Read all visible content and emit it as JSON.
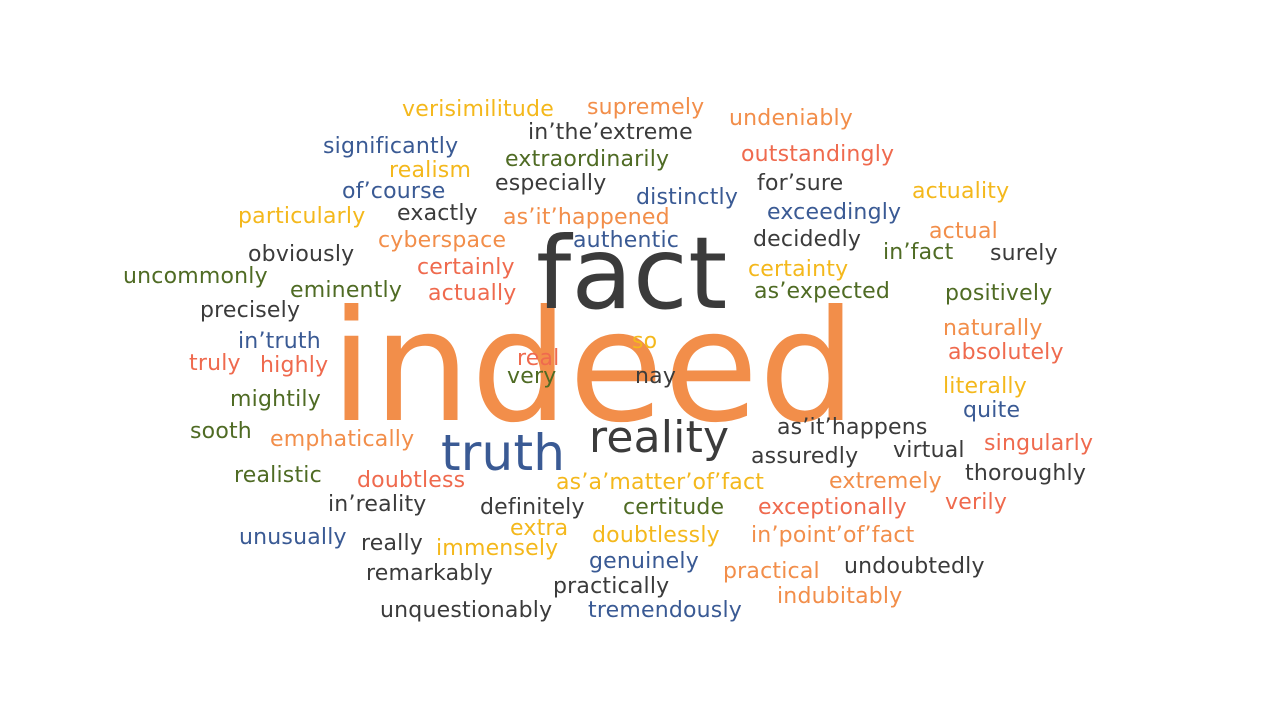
{
  "colors": {
    "orange": "#f28e4a",
    "yellow": "#f4b81c",
    "red": "#ef6a4e",
    "blue": "#3a5a94",
    "green": "#4f6b24",
    "dark": "#3b3b3b"
  },
  "words": [
    {
      "text": "indeed",
      "color": "orange"
    },
    {
      "text": "fact",
      "color": "dark"
    },
    {
      "text": "truth",
      "color": "blue"
    },
    {
      "text": "reality",
      "color": "dark"
    },
    {
      "text": "verisimilitude",
      "color": "yellow"
    },
    {
      "text": "supremely",
      "color": "orange"
    },
    {
      "text": "undeniably",
      "color": "orange"
    },
    {
      "text": "in’the’extreme",
      "color": "dark"
    },
    {
      "text": "significantly",
      "color": "blue"
    },
    {
      "text": "extraordinarily",
      "color": "green"
    },
    {
      "text": "outstandingly",
      "color": "red"
    },
    {
      "text": "realism",
      "color": "yellow"
    },
    {
      "text": "of’course",
      "color": "blue"
    },
    {
      "text": "especially",
      "color": "dark"
    },
    {
      "text": "distinctly",
      "color": "blue"
    },
    {
      "text": "for’sure",
      "color": "dark"
    },
    {
      "text": "actuality",
      "color": "yellow"
    },
    {
      "text": "particularly",
      "color": "yellow"
    },
    {
      "text": "exactly",
      "color": "dark"
    },
    {
      "text": "as’it’happened",
      "color": "orange"
    },
    {
      "text": "exceedingly",
      "color": "blue"
    },
    {
      "text": "actual",
      "color": "orange"
    },
    {
      "text": "cyberspace",
      "color": "orange"
    },
    {
      "text": "authentic",
      "color": "blue"
    },
    {
      "text": "decidedly",
      "color": "dark"
    },
    {
      "text": "obviously",
      "color": "dark"
    },
    {
      "text": "in’fact",
      "color": "green"
    },
    {
      "text": "surely",
      "color": "dark"
    },
    {
      "text": "uncommonly",
      "color": "green"
    },
    {
      "text": "certainly",
      "color": "red"
    },
    {
      "text": "certainty",
      "color": "yellow"
    },
    {
      "text": "eminently",
      "color": "green"
    },
    {
      "text": "actually",
      "color": "red"
    },
    {
      "text": "as’expected",
      "color": "green"
    },
    {
      "text": "positively",
      "color": "green"
    },
    {
      "text": "precisely",
      "color": "dark"
    },
    {
      "text": "naturally",
      "color": "orange"
    },
    {
      "text": "in’truth",
      "color": "blue"
    },
    {
      "text": "so",
      "color": "yellow"
    },
    {
      "text": "absolutely",
      "color": "red"
    },
    {
      "text": "truly",
      "color": "red"
    },
    {
      "text": "highly",
      "color": "red"
    },
    {
      "text": "real",
      "color": "red"
    },
    {
      "text": "very",
      "color": "green"
    },
    {
      "text": "nay",
      "color": "dark"
    },
    {
      "text": "literally",
      "color": "yellow"
    },
    {
      "text": "mightily",
      "color": "green"
    },
    {
      "text": "quite",
      "color": "blue"
    },
    {
      "text": "sooth",
      "color": "green"
    },
    {
      "text": "emphatically",
      "color": "orange"
    },
    {
      "text": "as’it’happens",
      "color": "dark"
    },
    {
      "text": "singularly",
      "color": "red"
    },
    {
      "text": "virtual",
      "color": "dark"
    },
    {
      "text": "assuredly",
      "color": "dark"
    },
    {
      "text": "realistic",
      "color": "green"
    },
    {
      "text": "doubtless",
      "color": "red"
    },
    {
      "text": "as’a’matter’of’fact",
      "color": "yellow"
    },
    {
      "text": "extremely",
      "color": "orange"
    },
    {
      "text": "thoroughly",
      "color": "dark"
    },
    {
      "text": "in’reality",
      "color": "dark"
    },
    {
      "text": "definitely",
      "color": "dark"
    },
    {
      "text": "certitude",
      "color": "green"
    },
    {
      "text": "exceptionally",
      "color": "red"
    },
    {
      "text": "verily",
      "color": "red"
    },
    {
      "text": "extra",
      "color": "yellow"
    },
    {
      "text": "unusually",
      "color": "blue"
    },
    {
      "text": "really",
      "color": "dark"
    },
    {
      "text": "immensely",
      "color": "yellow"
    },
    {
      "text": "doubtlessly",
      "color": "yellow"
    },
    {
      "text": "in’point’of’fact",
      "color": "orange"
    },
    {
      "text": "genuinely",
      "color": "blue"
    },
    {
      "text": "remarkably",
      "color": "dark"
    },
    {
      "text": "practical",
      "color": "orange"
    },
    {
      "text": "undoubtedly",
      "color": "dark"
    },
    {
      "text": "practically",
      "color": "dark"
    },
    {
      "text": "indubitably",
      "color": "orange"
    },
    {
      "text": "unquestionably",
      "color": "dark"
    },
    {
      "text": "tremendously",
      "color": "blue"
    }
  ]
}
